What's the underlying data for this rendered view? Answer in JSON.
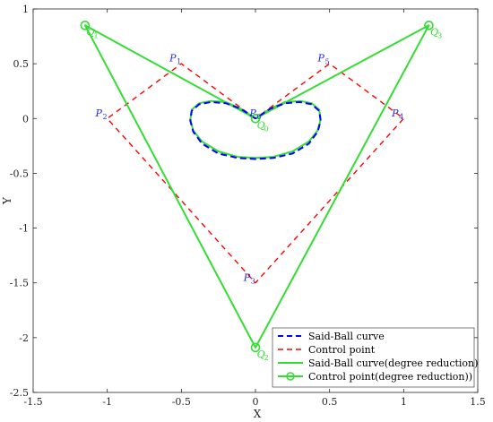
{
  "chart_data": {
    "type": "line",
    "xlabel": "X",
    "ylabel": "Y",
    "xlim": [
      -1.5,
      1.5
    ],
    "ylim": [
      -2.5,
      1
    ],
    "xticks": [
      -1.5,
      -1,
      -0.5,
      0,
      0.5,
      1,
      1.5
    ],
    "yticks": [
      -2.5,
      -2,
      -1.5,
      -1,
      -0.5,
      0,
      0.5,
      1
    ],
    "legend_position": "bottom-right",
    "series": [
      {
        "name": "Said-Ball curve",
        "style": "dashed",
        "color": "#0000ff",
        "x": [
          0,
          -0.1,
          -0.2,
          -0.3,
          -0.38,
          -0.43,
          -0.44,
          -0.42,
          -0.36,
          -0.25,
          -0.12,
          0,
          0.12,
          0.25,
          0.36,
          0.42,
          0.44,
          0.43,
          0.38,
          0.3,
          0.2,
          0.1,
          0
        ],
        "y": [
          0,
          0.09,
          0.14,
          0.15,
          0.13,
          0.07,
          -0.02,
          -0.12,
          -0.23,
          -0.32,
          -0.36,
          -0.37,
          -0.36,
          -0.32,
          -0.23,
          -0.12,
          -0.02,
          0.07,
          0.13,
          0.15,
          0.14,
          0.09,
          0
        ]
      },
      {
        "name": "Control point",
        "style": "dashed",
        "color": "#ff0000",
        "x": [
          0,
          -0.5,
          -1,
          0,
          1,
          0.5,
          0
        ],
        "y": [
          0,
          0.5,
          0,
          -1.5,
          0,
          0.5,
          0
        ]
      },
      {
        "name": "Said-Ball curve(degree reduction)",
        "style": "solid",
        "color": "#33dd33",
        "x": [
          0,
          -0.1,
          -0.2,
          -0.3,
          -0.38,
          -0.43,
          -0.44,
          -0.42,
          -0.36,
          -0.25,
          -0.12,
          0,
          0.12,
          0.25,
          0.36,
          0.42,
          0.44,
          0.43,
          0.38,
          0.3,
          0.2,
          0.1,
          0
        ],
        "y": [
          0,
          0.09,
          0.15,
          0.16,
          0.14,
          0.08,
          -0.01,
          -0.11,
          -0.21,
          -0.3,
          -0.35,
          -0.36,
          -0.35,
          -0.3,
          -0.21,
          -0.11,
          -0.01,
          0.08,
          0.14,
          0.16,
          0.15,
          0.09,
          0
        ]
      },
      {
        "name": "Control point(degree reduction))",
        "style": "solid-circle-markers",
        "color": "#33dd33",
        "x": [
          0,
          -1.15,
          0,
          1.17,
          0
        ],
        "y": [
          0,
          0.85,
          -2.09,
          0.85,
          0
        ]
      }
    ],
    "annotations": [
      {
        "text": "P",
        "sub": "0",
        "x": -0.04,
        "y": 0.02,
        "color": "#2a2ae0"
      },
      {
        "text": "P",
        "sub": "1",
        "x": -0.58,
        "y": 0.52,
        "color": "#2a2ae0"
      },
      {
        "text": "P",
        "sub": "2",
        "x": -1.08,
        "y": 0.02,
        "color": "#2a2ae0"
      },
      {
        "text": "P",
        "sub": "3",
        "x": -0.08,
        "y": -1.48,
        "color": "#2a2ae0"
      },
      {
        "text": "P",
        "sub": "4",
        "x": 0.92,
        "y": 0.02,
        "color": "#2a2ae0"
      },
      {
        "text": "P",
        "sub": "5",
        "x": 0.42,
        "y": 0.52,
        "color": "#2a2ae0"
      },
      {
        "text": "Q",
        "sub": "0",
        "x": 0.01,
        "y": -0.09,
        "color": "#33dd33"
      },
      {
        "text": "Q",
        "sub": "1",
        "x": -1.14,
        "y": 0.76,
        "color": "#33dd33"
      },
      {
        "text": "Q",
        "sub": "2",
        "x": 0.01,
        "y": -2.18,
        "color": "#33dd33"
      },
      {
        "text": "Q",
        "sub": "3",
        "x": 1.18,
        "y": 0.76,
        "color": "#33dd33"
      }
    ]
  }
}
